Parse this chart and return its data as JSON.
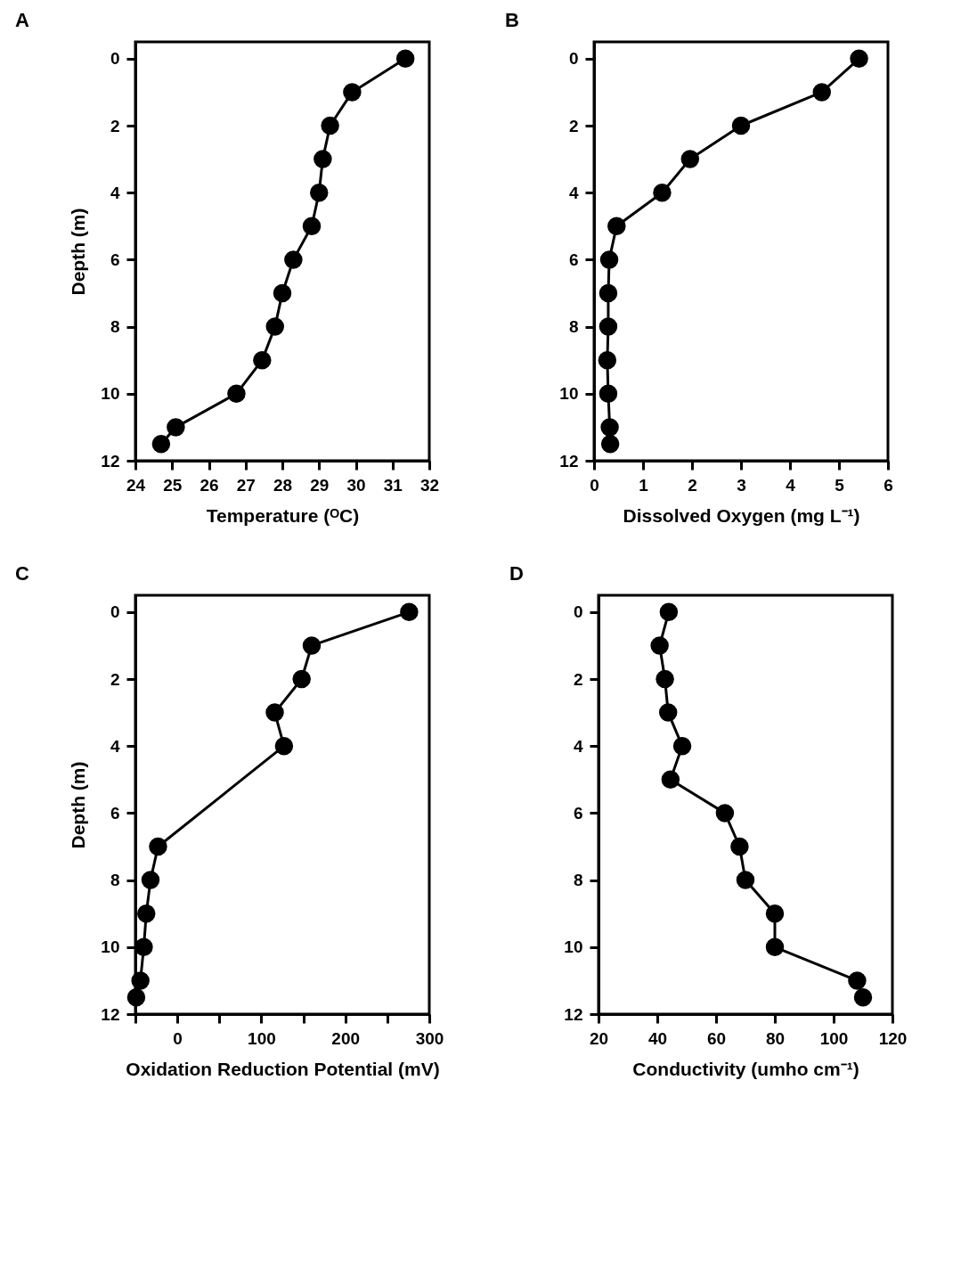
{
  "chart_data": [
    {
      "type": "line",
      "title": "A",
      "xlabel": "Temperature (ᴼC)",
      "ylabel": "Depth (m)",
      "marker": "circle",
      "line_style": "solid",
      "grid": false,
      "xlim": [
        24,
        32
      ],
      "xticks": [
        24,
        25,
        26,
        27,
        28,
        29,
        30,
        31,
        32
      ],
      "ylim": [
        12,
        -0.5
      ],
      "yticks": [
        0,
        2,
        4,
        6,
        8,
        10,
        12
      ],
      "series": [
        {
          "color": "#000000",
          "x": [
            31.35,
            29.9,
            29.3,
            29.1,
            29.0,
            28.8,
            28.3,
            28.0,
            27.8,
            27.45,
            26.75,
            25.1,
            24.7
          ],
          "values": [
            0,
            1,
            2,
            3,
            4,
            5,
            6,
            7,
            8,
            9,
            10,
            11,
            11.5
          ]
        }
      ]
    },
    {
      "type": "line",
      "title": "B",
      "xlabel": "Dissolved Oxygen (mg L⁻¹)",
      "marker": "circle",
      "line_style": "solid",
      "grid": false,
      "xlim": [
        0,
        6
      ],
      "xticks": [
        0,
        1,
        2,
        3,
        4,
        5,
        6
      ],
      "ylim": [
        12,
        -0.5
      ],
      "yticks": [
        0,
        2,
        4,
        6,
        8,
        10,
        12
      ],
      "series": [
        {
          "color": "#000000",
          "x": [
            5.41,
            4.65,
            3.0,
            1.96,
            1.39,
            0.46,
            0.31,
            0.29,
            0.29,
            0.27,
            0.29,
            0.32,
            0.33
          ],
          "values": [
            0,
            1,
            2,
            3,
            4,
            5,
            6,
            7,
            8,
            9,
            10,
            11,
            11.5
          ]
        }
      ]
    },
    {
      "type": "line",
      "title": "C",
      "xlabel": "Oxidation Reduction Potential (mV)",
      "ylabel": "Depth (m)",
      "marker": "circle",
      "line_style": "solid",
      "grid": false,
      "xlim": [
        -50,
        300
      ],
      "xticks": [
        {
          "value": -50,
          "label": null
        },
        0,
        {
          "value": 50,
          "label": null
        },
        100,
        {
          "value": 150,
          "label": null
        },
        200,
        {
          "value": 250,
          "label": null
        },
        300
      ],
      "ylim": [
        12,
        -0.5
      ],
      "yticks": [
        0,
        2,
        4,
        6,
        8,
        10,
        12
      ],
      "series": [
        {
          "color": "#000000",
          "x": [
            276,
            160,
            148,
            116,
            127,
            -23,
            -32,
            -37,
            -40,
            -44,
            -49
          ],
          "values": [
            0,
            1,
            2,
            3,
            4,
            7,
            8,
            9,
            10,
            11,
            11.5
          ]
        }
      ]
    },
    {
      "type": "line",
      "title": "D",
      "xlabel": "Conductivity (umho cm⁻¹)",
      "marker": "circle",
      "line_style": "solid",
      "grid": false,
      "xlim": [
        20,
        120
      ],
      "xticks": [
        20,
        40,
        60,
        80,
        100,
        120
      ],
      "ylim": [
        12,
        -0.5
      ],
      "yticks": [
        0,
        2,
        4,
        6,
        8,
        10,
        12
      ],
      "series": [
        {
          "color": "#000000",
          "x": [
            43.9,
            40.8,
            42.6,
            43.7,
            48.5,
            44.5,
            63,
            68,
            70,
            80,
            80,
            108,
            110
          ],
          "values": [
            0,
            1,
            2,
            3,
            4,
            5,
            6,
            7,
            8,
            9,
            10,
            11,
            11.5
          ]
        }
      ]
    }
  ]
}
